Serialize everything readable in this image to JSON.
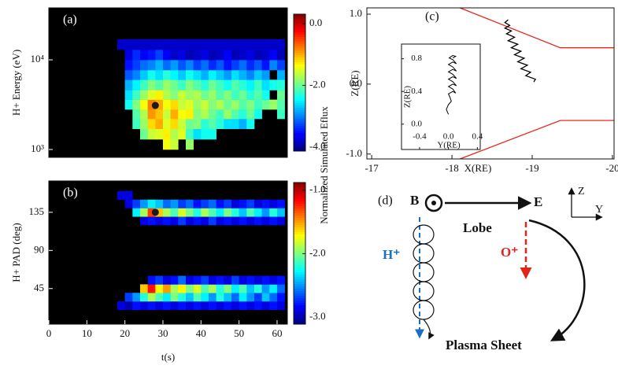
{
  "chart_data": [
    {
      "type": "heatmap",
      "panel_label": "(a)",
      "ylabel": "H+ Energy (eV)",
      "log_y": true,
      "xlim": [
        0,
        62.7
      ],
      "ylim": [
        817,
        38000
      ],
      "yticks": [
        {
          "value": 1000,
          "label": "10³"
        },
        {
          "value": 10000,
          "label": "10⁴"
        }
      ],
      "clim": [
        -4.13,
        0.31
      ],
      "cticks": [
        {
          "value": 0,
          "label": "0.0"
        },
        {
          "value": -2,
          "label": "-2.0"
        },
        {
          "value": -4,
          "label": "-4.0"
        }
      ],
      "x_bins": [
        18,
        20,
        22,
        24,
        26,
        28,
        30,
        32,
        34,
        36,
        38,
        40,
        42,
        44,
        46,
        48,
        50,
        52,
        54,
        56,
        58,
        60,
        62
      ],
      "y_bins": [
        1000,
        1300,
        1700,
        2200,
        2800,
        3600,
        4600,
        6000,
        7700,
        10000,
        13000,
        17000
      ],
      "values": [
        [
          null,
          null,
          null,
          null,
          null,
          null,
          -1.4,
          -1.6,
          null,
          -1.8,
          null,
          null,
          null,
          null,
          null,
          null,
          null,
          null,
          null,
          null,
          null,
          null
        ],
        [
          null,
          null,
          null,
          -2.0,
          -1.6,
          -1.5,
          -1.3,
          -1.7,
          -1.5,
          -2.2,
          -2.6,
          -2.4,
          -2.4,
          null,
          null,
          null,
          null,
          null,
          null,
          null,
          null,
          null
        ],
        [
          null,
          null,
          -2.2,
          -1.8,
          -1.2,
          -1.0,
          -1.5,
          -1.2,
          -1.6,
          -2.0,
          -1.9,
          -2.3,
          -2.1,
          -2.3,
          -2.6,
          -2.6,
          -2.8,
          -2.4,
          null,
          null,
          null,
          null
        ],
        [
          null,
          null,
          -2.1,
          -1.7,
          -0.9,
          -1.1,
          -1.6,
          -1.0,
          -1.4,
          -1.3,
          -1.9,
          -1.7,
          -2.0,
          -2.2,
          -1.8,
          -2.1,
          -2.3,
          -2.0,
          -2.4,
          null,
          null,
          -2.2
        ],
        [
          null,
          -2.4,
          -1.9,
          -1.4,
          -0.8,
          -1.0,
          -1.4,
          -1.2,
          -1.6,
          -1.5,
          -1.8,
          -1.6,
          -1.9,
          -1.7,
          -2.0,
          -1.8,
          -2.1,
          -1.9,
          -2.2,
          -2.0,
          -1.8,
          -2.1
        ],
        [
          null,
          -2.6,
          -2.2,
          -1.8,
          -1.5,
          -1.3,
          -1.7,
          -1.9,
          -1.6,
          -1.8,
          -1.7,
          -2.0,
          -1.8,
          -2.1,
          -1.9,
          -2.2,
          -2.0,
          -2.3,
          -2.1,
          -2.4,
          null,
          -2.0
        ],
        [
          null,
          -2.8,
          -2.5,
          -2.2,
          -1.9,
          -2.1,
          -1.8,
          -2.0,
          -2.2,
          -1.9,
          -2.1,
          -2.3,
          -2.0,
          -2.2,
          -2.4,
          -2.1,
          -2.3,
          -2.5,
          -2.2,
          -2.6,
          -2.4,
          -2.3
        ],
        [
          null,
          -3.2,
          -3.0,
          -2.7,
          -2.4,
          -2.6,
          -2.3,
          -2.5,
          -2.7,
          -2.4,
          -2.6,
          -2.8,
          -2.5,
          -2.7,
          -2.9,
          -2.6,
          -2.8,
          -3.0,
          -2.7,
          -2.9,
          null,
          -2.8
        ],
        [
          null,
          -3.5,
          -3.3,
          -3.1,
          -3.0,
          -2.8,
          -3.1,
          -2.9,
          -3.2,
          -3.0,
          -3.3,
          -3.1,
          -3.4,
          -3.2,
          -3.5,
          -3.3,
          -3.1,
          -3.4,
          -3.2,
          -3.5,
          -3.0,
          -3.3
        ],
        [
          null,
          -3.7,
          -3.4,
          -3.6,
          -3.5,
          -3.3,
          -3.6,
          -3.8,
          -3.7,
          -3.9,
          -3.8,
          -3.7,
          -3.9,
          -3.8,
          -3.6,
          -3.9,
          -3.8,
          -3.7,
          -3.9,
          -3.8,
          -3.6,
          -3.9
        ],
        [
          -3.8,
          -3.8,
          -3.8,
          -3.8,
          -3.8,
          -3.8,
          -3.8,
          -3.8,
          -3.8,
          -3.8,
          -3.8,
          -3.8,
          -3.8,
          -3.8,
          -3.8,
          -3.8,
          -3.8,
          -3.8,
          -3.8,
          -3.8,
          -3.8,
          -3.8
        ]
      ],
      "marker": {
        "x": 28,
        "y": 3100,
        "color": "#1a1a1a"
      }
    },
    {
      "type": "heatmap",
      "panel_label": "(b)",
      "ylabel": "H+ PAD (deg)",
      "xlabel": "t(s)",
      "log_y": false,
      "xlim": [
        0,
        62.7
      ],
      "ylim": [
        3,
        172
      ],
      "xticks": [
        0,
        10,
        20,
        30,
        40,
        50,
        60
      ],
      "yticks": [
        45,
        90,
        135
      ],
      "clim": [
        -3.11,
        -0.88
      ],
      "cticks": [
        {
          "value": -1,
          "label": "-1.0"
        },
        {
          "value": -2,
          "label": "-2.0"
        },
        {
          "value": -3,
          "label": "-3.0"
        }
      ],
      "x_bins": [
        18,
        20,
        22,
        24,
        26,
        28,
        30,
        32,
        34,
        36,
        38,
        40,
        42,
        44,
        46,
        48,
        50,
        52,
        54,
        56,
        58,
        60,
        62
      ],
      "y_bins": [
        20,
        30,
        40,
        50,
        60,
        70,
        80,
        90,
        100,
        110,
        120,
        130,
        140,
        150,
        160
      ],
      "values": [
        [
          -2.9,
          -3.0,
          -2.8,
          -2.9,
          -2.8,
          -2.9,
          -2.8,
          -2.9,
          -2.8,
          -2.9,
          -2.8,
          -2.9,
          -2.8,
          -2.9,
          -2.8,
          -2.9,
          -2.8,
          -2.9,
          -2.8,
          -2.9,
          -2.8,
          -2.9
        ],
        [
          null,
          -2.7,
          -2.5,
          -2.2,
          -1.9,
          -2.1,
          -2.3,
          -2.0,
          -2.2,
          -2.4,
          -2.1,
          -2.3,
          -2.5,
          -2.2,
          -2.4,
          -2.6,
          -2.3,
          -2.5,
          -2.7,
          -2.4,
          -2.6,
          -2.8
        ],
        [
          null,
          null,
          null,
          -1.6,
          -1.2,
          -1.7,
          -1.5,
          -1.9,
          -1.7,
          -2.0,
          -1.8,
          -2.1,
          -1.9,
          -2.2,
          -2.0,
          -2.3,
          -2.1,
          -2.4,
          -2.2,
          -2.5,
          -2.3,
          -2.6
        ],
        [
          null,
          null,
          null,
          null,
          -2.8,
          -2.7,
          -2.9,
          -2.8,
          -2.6,
          -2.9,
          -2.8,
          -2.7,
          -2.9,
          -2.8,
          -2.9,
          -2.7,
          -2.9,
          -2.8,
          -2.9,
          -2.8,
          -2.9,
          -2.8
        ],
        [
          null,
          null,
          null,
          null,
          null,
          null,
          null,
          null,
          null,
          null,
          null,
          null,
          null,
          null,
          null,
          null,
          null,
          null,
          null,
          null,
          null,
          null
        ],
        [
          null,
          null,
          null,
          null,
          null,
          null,
          null,
          null,
          null,
          null,
          null,
          null,
          null,
          null,
          null,
          null,
          null,
          null,
          null,
          null,
          null,
          null
        ],
        [
          null,
          null,
          null,
          null,
          null,
          null,
          null,
          null,
          null,
          null,
          null,
          null,
          null,
          null,
          null,
          null,
          null,
          null,
          null,
          null,
          null,
          null
        ],
        [
          null,
          null,
          null,
          null,
          null,
          null,
          null,
          null,
          null,
          null,
          null,
          null,
          null,
          null,
          null,
          null,
          null,
          null,
          null,
          null,
          null,
          null
        ],
        [
          null,
          null,
          null,
          null,
          null,
          null,
          null,
          null,
          null,
          null,
          null,
          null,
          null,
          null,
          null,
          null,
          null,
          null,
          null,
          null,
          null,
          null
        ],
        [
          null,
          null,
          null,
          null,
          null,
          null,
          null,
          null,
          null,
          null,
          null,
          null,
          null,
          null,
          null,
          null,
          null,
          null,
          null,
          null,
          null,
          null
        ],
        [
          null,
          null,
          null,
          -2.9,
          -2.8,
          -2.9,
          -2.8,
          -2.9,
          -2.7,
          -2.9,
          -2.8,
          -2.9,
          -2.7,
          -2.9,
          -2.8,
          -2.9,
          -2.8,
          -2.9,
          -2.8,
          -2.9,
          -2.8,
          -2.9
        ],
        [
          null,
          null,
          -2.3,
          -1.9,
          -1.3,
          -1.6,
          -1.9,
          -2.1,
          -1.8,
          -2.0,
          -2.2,
          -1.9,
          -2.1,
          -2.3,
          -2.0,
          -2.2,
          -2.4,
          -2.1,
          -2.3,
          -2.5,
          -2.2,
          -2.4
        ],
        [
          null,
          -2.9,
          -2.7,
          -2.5,
          -2.3,
          -2.4,
          -2.6,
          -2.5,
          -2.7,
          -2.6,
          -2.8,
          -2.7,
          -2.6,
          -2.8,
          -2.7,
          -2.9,
          -2.8,
          -2.7,
          -2.9,
          -2.8,
          -2.9,
          -2.8
        ],
        [
          -2.9,
          -2.9,
          null,
          null,
          null,
          null,
          null,
          null,
          null,
          null,
          null,
          null,
          null,
          null,
          null,
          null,
          null,
          null,
          null,
          null,
          null,
          null
        ]
      ],
      "marker": {
        "x": 28,
        "y": 135,
        "color": "#1a1a1a"
      }
    },
    {
      "type": "line",
      "panel_label": "(c)",
      "xlabel": "X(RE)",
      "ylabel": "Z(RE)",
      "xlim": [
        -16.94,
        -20.02
      ],
      "ylim": [
        -1.07,
        1.09
      ],
      "xticks": [
        -17,
        -18,
        -19,
        -20
      ],
      "yticks": [
        {
          "value": 1,
          "label": "1.0"
        },
        {
          "value": 0,
          "label": "0.0"
        },
        {
          "value": -1,
          "label": "-1.0"
        }
      ],
      "series": [
        {
          "color": "#e8281e",
          "x": [
            -18.1,
            -19.35,
            -20.02
          ],
          "values": [
            1.09,
            0.52,
            0.52
          ]
        },
        {
          "color": "#e8281e",
          "x": [
            -18.1,
            -19.35,
            -20.02
          ],
          "values": [
            -1.07,
            -0.52,
            -0.52
          ]
        },
        {
          "color": "#000000",
          "x": [
            -18.7,
            -18.66,
            -18.72,
            -18.66,
            -18.74,
            -18.68,
            -18.78,
            -18.7,
            -18.82,
            -18.74,
            -18.86,
            -18.78,
            -18.9,
            -18.82,
            -18.94,
            -18.86,
            -18.98,
            -18.92,
            -19.04,
            -19.02
          ],
          "values": [
            0.92,
            0.88,
            0.84,
            0.8,
            0.76,
            0.72,
            0.67,
            0.62,
            0.57,
            0.52,
            0.47,
            0.42,
            0.37,
            0.32,
            0.27,
            0.22,
            0.17,
            0.12,
            0.07,
            0.03
          ]
        }
      ]
    },
    {
      "type": "line",
      "xlabel": "Y(RE)",
      "ylabel": "Z(RE)",
      "xlim": [
        -0.65,
        0.44
      ],
      "ylim": [
        -0.31,
        0.98
      ],
      "xticks": [
        -0.4,
        {
          "value": 0,
          "label": "0.0"
        },
        0.4
      ],
      "yticks": [
        {
          "value": 0,
          "label": "0.0"
        },
        0.4,
        0.8
      ],
      "series": [
        {
          "color": "#000000",
          "x": [
            0.0,
            -0.03,
            0.0,
            0.04,
            0.02,
            0.0,
            0.06,
            0.1,
            0.06,
            0.0,
            0.06,
            0.11,
            0.06,
            0.0,
            0.06,
            0.11,
            0.06,
            0.0,
            0.06,
            0.11,
            0.06,
            0.0,
            0.06,
            0.11,
            0.06,
            0.01,
            0.06,
            0.1,
            0.06
          ],
          "values": [
            0.12,
            0.18,
            0.24,
            0.28,
            0.33,
            0.37,
            0.4,
            0.38,
            0.43,
            0.46,
            0.49,
            0.47,
            0.52,
            0.55,
            0.58,
            0.56,
            0.61,
            0.64,
            0.67,
            0.65,
            0.7,
            0.73,
            0.76,
            0.74,
            0.79,
            0.81,
            0.84,
            0.83,
            0.81
          ]
        }
      ]
    }
  ],
  "colorbar_label": "Normalized  Simulated Eflux",
  "diagram": {
    "label": "(d)",
    "b": "B",
    "e": "E",
    "lobe": "Lobe",
    "h": "H⁺",
    "o": "O⁺",
    "sheet": "Plasma Sheet",
    "z": "Z",
    "y": "Y"
  }
}
